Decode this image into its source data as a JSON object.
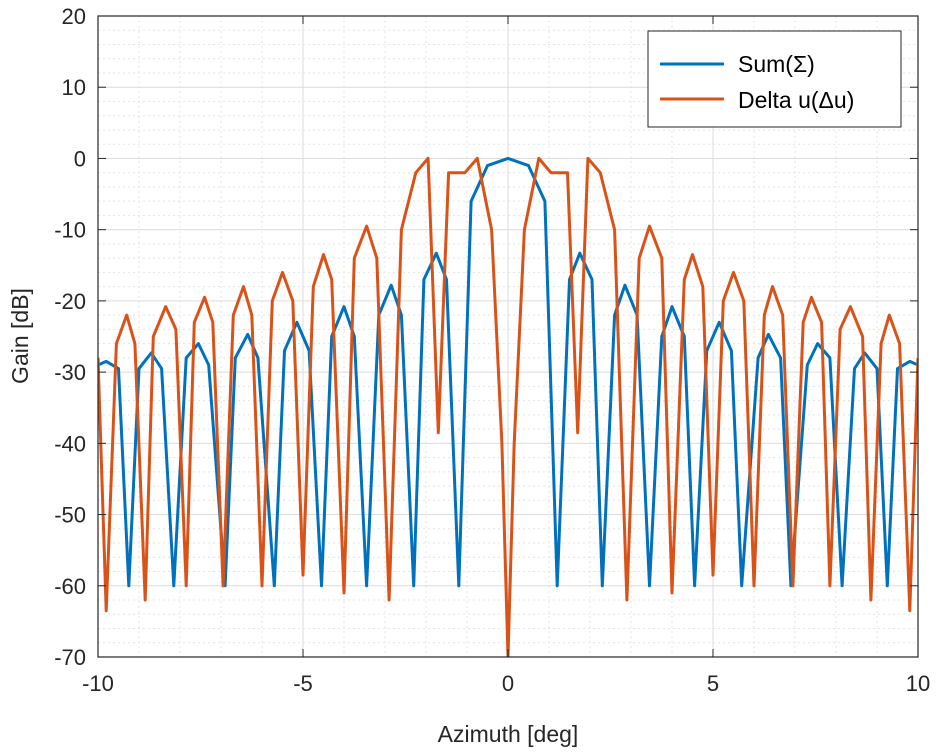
{
  "chart_data": {
    "type": "line",
    "title": "",
    "xlabel": "Azimuth [deg]",
    "ylabel": "Gain [dB]",
    "xlim": [
      -10,
      10
    ],
    "ylim": [
      -70,
      20
    ],
    "x_ticks": [
      -10,
      -5,
      0,
      5,
      10
    ],
    "y_ticks": [
      20,
      10,
      0,
      -10,
      -20,
      -30,
      -40,
      -50,
      -60,
      -70
    ],
    "grid": "major and minor",
    "legend_position": "top-right",
    "series": [
      {
        "name": "Sum(Σ)",
        "color": "#0072BD",
        "x": [
          -10,
          -9.8,
          -9.5,
          -9.25,
          -9.0,
          -8.7,
          -8.45,
          -8.15,
          -7.85,
          -7.55,
          -7.3,
          -6.9,
          -6.65,
          -6.35,
          -6.1,
          -5.7,
          -5.45,
          -5.15,
          -4.85,
          -4.55,
          -4.3,
          -4.0,
          -3.75,
          -3.45,
          -3.15,
          -2.85,
          -2.6,
          -2.3,
          -2.05,
          -1.75,
          -1.5,
          -1.2,
          -0.9,
          -0.5,
          0,
          0.5,
          0.9,
          1.2,
          1.5,
          1.75,
          2.05,
          2.3,
          2.6,
          2.85,
          3.15,
          3.45,
          3.75,
          4.0,
          4.3,
          4.55,
          4.85,
          5.15,
          5.45,
          5.7,
          6.1,
          6.35,
          6.65,
          6.9,
          7.3,
          7.55,
          7.85,
          8.15,
          8.45,
          8.7,
          9.0,
          9.25,
          9.5,
          9.8,
          10
        ],
        "y": [
          -29,
          -28.5,
          -29.5,
          -60,
          -29.5,
          -27.3,
          -29.5,
          -60,
          -28,
          -26,
          -29,
          -60,
          -28,
          -24.7,
          -28,
          -60,
          -27,
          -23,
          -27,
          -60,
          -25,
          -20.8,
          -25,
          -60,
          -22,
          -17.8,
          -22,
          -60,
          -17,
          -13.3,
          -17,
          -60,
          -6,
          -1,
          0,
          -1,
          -6,
          -60,
          -17,
          -13.3,
          -17,
          -60,
          -22,
          -17.8,
          -22,
          -60,
          -25,
          -20.8,
          -25,
          -60,
          -27,
          -23,
          -27,
          -60,
          -28,
          -24.7,
          -28,
          -60,
          -29,
          -26,
          -28,
          -60,
          -29.5,
          -27.3,
          -29.5,
          -60,
          -29.5,
          -28.5,
          -29
        ]
      },
      {
        "name": "Delta u(Δu)",
        "color": "#D95319",
        "x": [
          -10,
          -9.8,
          -9.55,
          -9.3,
          -9.1,
          -8.85,
          -8.65,
          -8.35,
          -8.1,
          -7.85,
          -7.65,
          -7.4,
          -7.2,
          -6.95,
          -6.7,
          -6.45,
          -6.25,
          -6.0,
          -5.75,
          -5.5,
          -5.25,
          -5.0,
          -4.75,
          -4.5,
          -4.3,
          -4.0,
          -3.75,
          -3.45,
          -3.2,
          -2.9,
          -2.6,
          -2.25,
          -1.95,
          -1.7,
          -1.45,
          -1.05,
          -0.75,
          -0.4,
          -0.15,
          0,
          0.15,
          0.4,
          0.75,
          1.05,
          1.45,
          1.7,
          1.95,
          2.25,
          2.6,
          2.9,
          3.2,
          3.45,
          3.75,
          4.0,
          4.3,
          4.5,
          4.75,
          5.0,
          5.25,
          5.5,
          5.75,
          6.0,
          6.25,
          6.45,
          6.7,
          6.95,
          7.2,
          7.4,
          7.65,
          7.85,
          8.1,
          8.35,
          8.65,
          8.85,
          9.1,
          9.3,
          9.55,
          9.8,
          10
        ],
        "y": [
          -28,
          -63.5,
          -26,
          -22,
          -26,
          -62,
          -25,
          -20.8,
          -24,
          -60,
          -23,
          -19.5,
          -23,
          -60,
          -22,
          -18,
          -22,
          -60,
          -20,
          -16,
          -20,
          -58.5,
          -18,
          -13.5,
          -17,
          -61,
          -14,
          -9.5,
          -14,
          -62,
          -10,
          -2,
          0,
          -38.5,
          -2,
          -2,
          0,
          -10,
          -40,
          -70,
          -40,
          -10,
          0,
          -2,
          -2,
          -38.5,
          0,
          -2,
          -10,
          -62,
          -14,
          -9.5,
          -14,
          -61,
          -17,
          -13.5,
          -18,
          -58.5,
          -20,
          -16,
          -20,
          -60,
          -22,
          -18,
          -22,
          -60,
          -23,
          -19.5,
          -23,
          -60,
          -24,
          -20.8,
          -25,
          -62,
          -26,
          -22,
          -26,
          -63.5,
          -28
        ]
      }
    ]
  }
}
